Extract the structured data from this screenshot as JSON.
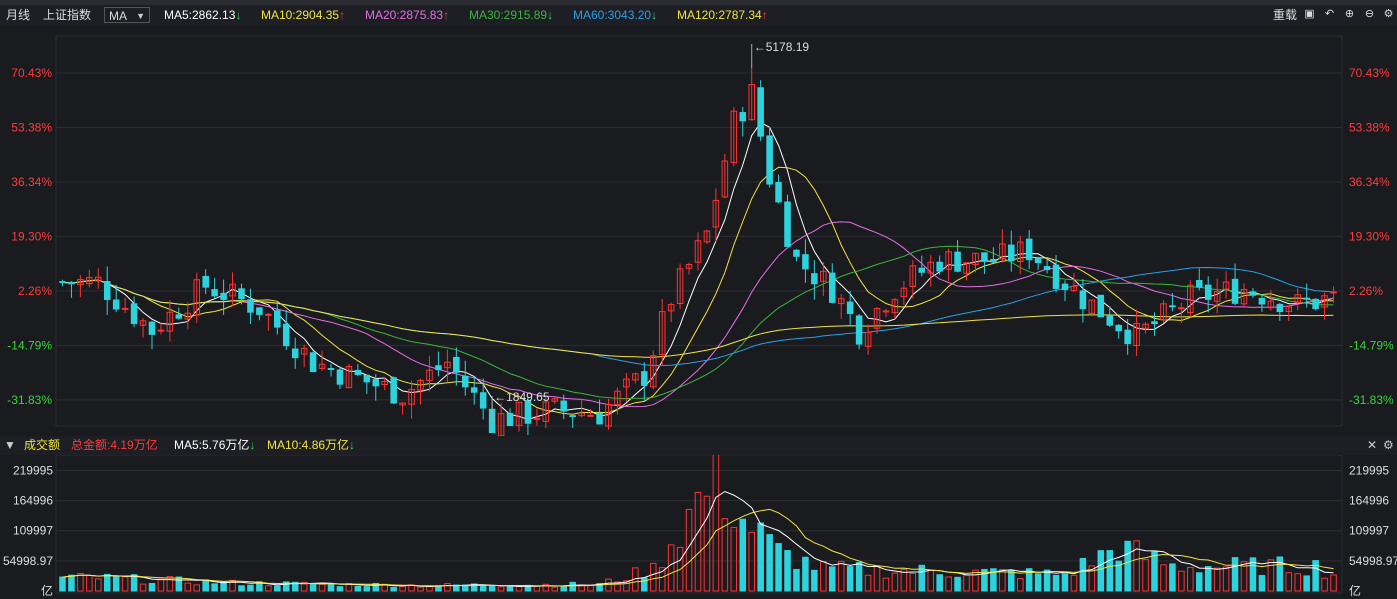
{
  "header": {
    "period": "月线",
    "index_name": "上证指数",
    "indicator": "MA",
    "ma_items": [
      {
        "label": "MA5:2862.13",
        "color": "#ffffff",
        "trend": "down"
      },
      {
        "label": "MA10:2904.35",
        "color": "#f0e442",
        "trend": "up"
      },
      {
        "label": "MA20:2875.83",
        "color": "#e46ee4",
        "trend": "up"
      },
      {
        "label": "MA30:2915.89",
        "color": "#3cb43c",
        "trend": "down"
      },
      {
        "label": "MA60:3043.20",
        "color": "#2a9ee8",
        "trend": "down"
      },
      {
        "label": "MA120:2787.34",
        "color": "#f0e442",
        "trend": "up"
      }
    ],
    "restore_label": "重载"
  },
  "arrows": {
    "up": "↑",
    "down": "↓"
  },
  "price_axis": {
    "labels": [
      "70.43%",
      "53.38%",
      "36.34%",
      "19.30%",
      "2.26%",
      "-14.79%",
      "-31.83%"
    ],
    "values": [
      70.43,
      53.38,
      36.34,
      19.3,
      2.26,
      -14.79,
      -31.83
    ]
  },
  "annotations": {
    "high": "←5178.19",
    "low": "←1849.65"
  },
  "volume_header": {
    "title": "成交额",
    "total": "总金额:4.19万亿",
    "ma5": "MA5:5.76万亿",
    "ma10": "MA10:4.86万亿"
  },
  "volume_axis": {
    "labels": [
      "219995",
      "164996",
      "109997",
      "54998.97",
      "亿"
    ]
  },
  "colors": {
    "up": "#ff3232",
    "down": "#2ed2dc",
    "grid": "#2c2e33",
    "axis_pos": "#ff3b3b",
    "axis_neg": "#3cd23c",
    "ma5": "#ffffff",
    "ma10": "#f0e442",
    "ma20": "#e46ee4",
    "ma30": "#3cb43c",
    "ma60": "#2a9ee8",
    "ma120": "#f0e442"
  },
  "chart_data": {
    "type": "candlestick",
    "price_scale": "percent change",
    "ylim": [
      -40,
      82
    ],
    "anchors": [
      [
        4,
        5
      ],
      [
        10,
        -10
      ],
      [
        16,
        4
      ],
      [
        22,
        -3
      ],
      [
        28,
        -20
      ],
      [
        38,
        -30
      ],
      [
        43,
        -20
      ],
      [
        48,
        -38
      ],
      [
        55,
        -35
      ],
      [
        60,
        -36
      ],
      [
        65,
        -24
      ],
      [
        68,
        0
      ],
      [
        72,
        20
      ],
      [
        75,
        55
      ],
      [
        77,
        64
      ],
      [
        79,
        38
      ],
      [
        82,
        12
      ],
      [
        86,
        3
      ],
      [
        89,
        -10
      ],
      [
        93,
        3
      ],
      [
        98,
        12
      ],
      [
        104,
        12
      ],
      [
        108,
        15
      ],
      [
        114,
        0
      ],
      [
        120,
        -12
      ],
      [
        126,
        0
      ],
      [
        132,
        3
      ],
      [
        138,
        -2
      ],
      [
        142,
        0
      ]
    ],
    "volume_ylim": [
      0,
      230000
    ],
    "volume_anchors": [
      [
        4,
        24000
      ],
      [
        20,
        14000
      ],
      [
        40,
        10000
      ],
      [
        60,
        12000
      ],
      [
        66,
        40000
      ],
      [
        70,
        140000
      ],
      [
        73,
        205000
      ],
      [
        76,
        130000
      ],
      [
        80,
        70000
      ],
      [
        85,
        40000
      ],
      [
        100,
        35000
      ],
      [
        112,
        30000
      ],
      [
        118,
        80000
      ],
      [
        124,
        45000
      ],
      [
        140,
        45000
      ],
      [
        142,
        30000
      ]
    ],
    "series": [
      "MA5",
      "MA10",
      "MA20",
      "MA30",
      "MA60",
      "MA120"
    ]
  }
}
